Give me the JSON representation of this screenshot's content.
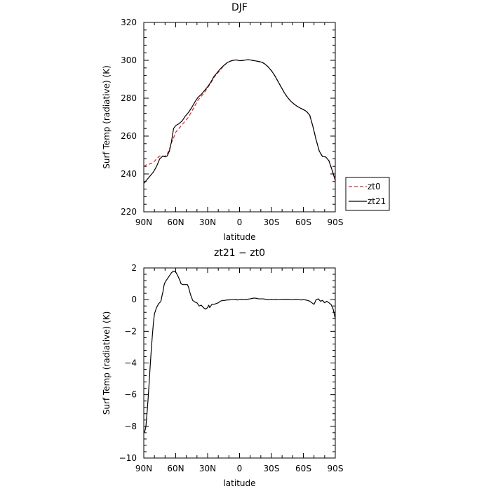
{
  "chart_data": [
    {
      "type": "line",
      "title": "DJF",
      "xlabel": "latitude",
      "ylabel": "Surf Temp (radiative) (K)",
      "xlim": [
        90,
        -90
      ],
      "ylim": [
        220,
        320
      ],
      "x_ticks": [
        {
          "value": 90,
          "label": "90N"
        },
        {
          "value": 60,
          "label": "60N"
        },
        {
          "value": 30,
          "label": "30N"
        },
        {
          "value": 0,
          "label": "0"
        },
        {
          "value": -30,
          "label": "30S"
        },
        {
          "value": -60,
          "label": "60S"
        },
        {
          "value": -90,
          "label": "90S"
        }
      ],
      "y_ticks": [
        220,
        240,
        260,
        280,
        300,
        320
      ],
      "grid": false,
      "legend_position": "right",
      "series": [
        {
          "name": "zt0",
          "color": "#d62728",
          "style": "dashed",
          "points": [
            [
              90,
              244
            ],
            [
              87,
              245
            ],
            [
              84,
              245.3
            ],
            [
              81,
              246
            ],
            [
              78,
              248
            ],
            [
              75,
              249.5
            ],
            [
              72,
              249.2
            ],
            [
              70,
              249.5
            ],
            [
              68,
              250.5
            ],
            [
              66,
              253
            ],
            [
              64,
              256.5
            ],
            [
              62,
              259
            ],
            [
              60,
              262
            ],
            [
              57,
              264
            ],
            [
              54,
              266
            ],
            [
              51,
              268
            ],
            [
              48,
              270
            ],
            [
              45,
              273
            ],
            [
              42,
              276
            ],
            [
              39,
              279
            ],
            [
              36,
              281
            ],
            [
              33,
              283
            ],
            [
              30,
              285.5
            ],
            [
              27,
              288
            ],
            [
              24,
              291
            ],
            [
              21,
              293
            ],
            [
              18,
              295
            ],
            [
              15,
              297
            ],
            [
              12,
              298.5
            ],
            [
              9,
              299.5
            ],
            [
              6,
              300
            ],
            [
              3,
              300.2
            ],
            [
              0,
              299.8
            ],
            [
              -3,
              299.9
            ],
            [
              -6,
              300.2
            ],
            [
              -9,
              300.3
            ],
            [
              -12,
              300
            ],
            [
              -15,
              299.7
            ],
            [
              -18,
              299.4
            ],
            [
              -21,
              299
            ],
            [
              -24,
              298
            ],
            [
              -27,
              296.5
            ],
            [
              -30,
              294.5
            ],
            [
              -33,
              292
            ],
            [
              -36,
              289
            ],
            [
              -39,
              286
            ],
            [
              -42,
              283
            ],
            [
              -45,
              280.5
            ],
            [
              -48,
              278.5
            ],
            [
              -51,
              277
            ],
            [
              -54,
              275.8
            ],
            [
              -57,
              274.8
            ],
            [
              -60,
              274
            ],
            [
              -63,
              273
            ],
            [
              -66,
              271
            ],
            [
              -69,
              265
            ],
            [
              -72,
              258
            ],
            [
              -75,
              252
            ],
            [
              -78,
              249.2
            ],
            [
              -81,
              249
            ],
            [
              -84,
              247
            ],
            [
              -87,
              242
            ],
            [
              -90,
              237.5
            ]
          ]
        },
        {
          "name": "zt21",
          "color": "#000000",
          "style": "solid",
          "points": [
            [
              90,
              235
            ],
            [
              87,
              237
            ],
            [
              84,
              239
            ],
            [
              81,
              241
            ],
            [
              78,
              244
            ],
            [
              75,
              248
            ],
            [
              72,
              249.5
            ],
            [
              70,
              249
            ],
            [
              68,
              249.5
            ],
            [
              66,
              252
            ],
            [
              64,
              257
            ],
            [
              62,
              264
            ],
            [
              60,
              265.5
            ],
            [
              57,
              266.5
            ],
            [
              54,
              268
            ],
            [
              51,
              270.5
            ],
            [
              48,
              272.5
            ],
            [
              45,
              275
            ],
            [
              42,
              278
            ],
            [
              39,
              280.5
            ],
            [
              36,
              282
            ],
            [
              33,
              284
            ],
            [
              30,
              286
            ],
            [
              27,
              288.5
            ],
            [
              24,
              291.5
            ],
            [
              21,
              293.5
            ],
            [
              18,
              295.5
            ],
            [
              15,
              297.2
            ],
            [
              12,
              298.6
            ],
            [
              9,
              299.5
            ],
            [
              6,
              300
            ],
            [
              3,
              300.2
            ],
            [
              0,
              299.8
            ],
            [
              -3,
              299.9
            ],
            [
              -6,
              300.2
            ],
            [
              -9,
              300.3
            ],
            [
              -12,
              300
            ],
            [
              -15,
              299.7
            ],
            [
              -18,
              299.4
            ],
            [
              -21,
              299
            ],
            [
              -24,
              298
            ],
            [
              -27,
              296.5
            ],
            [
              -30,
              294.5
            ],
            [
              -33,
              292
            ],
            [
              -36,
              289
            ],
            [
              -39,
              286
            ],
            [
              -42,
              283
            ],
            [
              -45,
              280.5
            ],
            [
              -48,
              278.5
            ],
            [
              -51,
              277
            ],
            [
              -54,
              275.8
            ],
            [
              -57,
              274.8
            ],
            [
              -60,
              274
            ],
            [
              -63,
              273
            ],
            [
              -66,
              271
            ],
            [
              -69,
              265
            ],
            [
              -72,
              258
            ],
            [
              -75,
              252
            ],
            [
              -78,
              249.2
            ],
            [
              -81,
              249
            ],
            [
              -84,
              247
            ],
            [
              -87,
              242
            ],
            [
              -90,
              236.5
            ]
          ]
        }
      ]
    },
    {
      "type": "line",
      "title": "zt21 − zt0",
      "xlabel": "latitude",
      "ylabel": "Surf Temp (radiative) (K)",
      "xlim": [
        90,
        -90
      ],
      "ylim": [
        -10,
        2
      ],
      "x_ticks": [
        {
          "value": 90,
          "label": "90N"
        },
        {
          "value": 60,
          "label": "60N"
        },
        {
          "value": 30,
          "label": "30N"
        },
        {
          "value": 0,
          "label": "0"
        },
        {
          "value": -30,
          "label": "30S"
        },
        {
          "value": -60,
          "label": "60S"
        },
        {
          "value": -90,
          "label": "90S"
        }
      ],
      "y_ticks": [
        2,
        0,
        -2,
        -4,
        -6,
        -8,
        -10
      ],
      "grid": false,
      "series": [
        {
          "color": "#000000",
          "style": "solid",
          "points": [
            [
              90,
              -8.4
            ],
            [
              89,
              -8.3
            ],
            [
              88,
              -8.0
            ],
            [
              87,
              -7.2
            ],
            [
              86,
              -6.3
            ],
            [
              85,
              -5.3
            ],
            [
              84,
              -4.2
            ],
            [
              83,
              -3.2
            ],
            [
              82,
              -2.3
            ],
            [
              81,
              -1.5
            ],
            [
              80,
              -0.9
            ],
            [
              78,
              -0.5
            ],
            [
              76,
              -0.25
            ],
            [
              74,
              -0.12
            ],
            [
              73,
              0.2
            ],
            [
              72,
              0.5
            ],
            [
              71,
              0.9
            ],
            [
              70,
              1.1
            ],
            [
              68,
              1.3
            ],
            [
              66,
              1.5
            ],
            [
              64,
              1.7
            ],
            [
              62,
              1.8
            ],
            [
              60,
              1.75
            ],
            [
              58,
              1.5
            ],
            [
              56,
              1.2
            ],
            [
              55,
              1.0
            ],
            [
              53,
              0.95
            ],
            [
              51,
              0.95
            ],
            [
              49,
              0.95
            ],
            [
              48,
              0.8
            ],
            [
              46,
              0.3
            ],
            [
              44,
              -0.05
            ],
            [
              42,
              -0.15
            ],
            [
              40,
              -0.2
            ],
            [
              38,
              -0.4
            ],
            [
              36,
              -0.35
            ],
            [
              34,
              -0.5
            ],
            [
              32,
              -0.6
            ],
            [
              30,
              -0.5
            ],
            [
              29,
              -0.35
            ],
            [
              28,
              -0.5
            ],
            [
              26,
              -0.3
            ],
            [
              24,
              -0.3
            ],
            [
              22,
              -0.25
            ],
            [
              20,
              -0.2
            ],
            [
              18,
              -0.1
            ],
            [
              16,
              -0.05
            ],
            [
              14,
              -0.05
            ],
            [
              12,
              -0.02
            ],
            [
              10,
              -0.02
            ],
            [
              8,
              0
            ],
            [
              6,
              0
            ],
            [
              4,
              0.02
            ],
            [
              2,
              -0.02
            ],
            [
              0,
              0
            ],
            [
              -2,
              0.02
            ],
            [
              -4,
              0
            ],
            [
              -6,
              0.02
            ],
            [
              -8,
              0.03
            ],
            [
              -10,
              0.05
            ],
            [
              -12,
              0.08
            ],
            [
              -14,
              0.1
            ],
            [
              -16,
              0.08
            ],
            [
              -18,
              0.05
            ],
            [
              -20,
              0.05
            ],
            [
              -22,
              0.05
            ],
            [
              -24,
              0.03
            ],
            [
              -26,
              0.02
            ],
            [
              -28,
              0
            ],
            [
              -30,
              0.02
            ],
            [
              -32,
              0
            ],
            [
              -34,
              0.02
            ],
            [
              -36,
              0
            ],
            [
              -38,
              0
            ],
            [
              -40,
              0.02
            ],
            [
              -42,
              0.02
            ],
            [
              -44,
              0.02
            ],
            [
              -46,
              0.02
            ],
            [
              -48,
              0
            ],
            [
              -50,
              0
            ],
            [
              -52,
              0.02
            ],
            [
              -54,
              0.02
            ],
            [
              -56,
              0
            ],
            [
              -58,
              -0.02
            ],
            [
              -60,
              0
            ],
            [
              -62,
              -0.02
            ],
            [
              -64,
              -0.05
            ],
            [
              -66,
              -0.1
            ],
            [
              -68,
              -0.2
            ],
            [
              -70,
              -0.3
            ],
            [
              -72,
              0
            ],
            [
              -74,
              0.05
            ],
            [
              -76,
              -0.1
            ],
            [
              -78,
              -0.05
            ],
            [
              -80,
              -0.2
            ],
            [
              -82,
              -0.1
            ],
            [
              -84,
              -0.2
            ],
            [
              -86,
              -0.3
            ],
            [
              -88,
              -0.6
            ],
            [
              -90,
              -1.2
            ]
          ]
        }
      ]
    }
  ]
}
